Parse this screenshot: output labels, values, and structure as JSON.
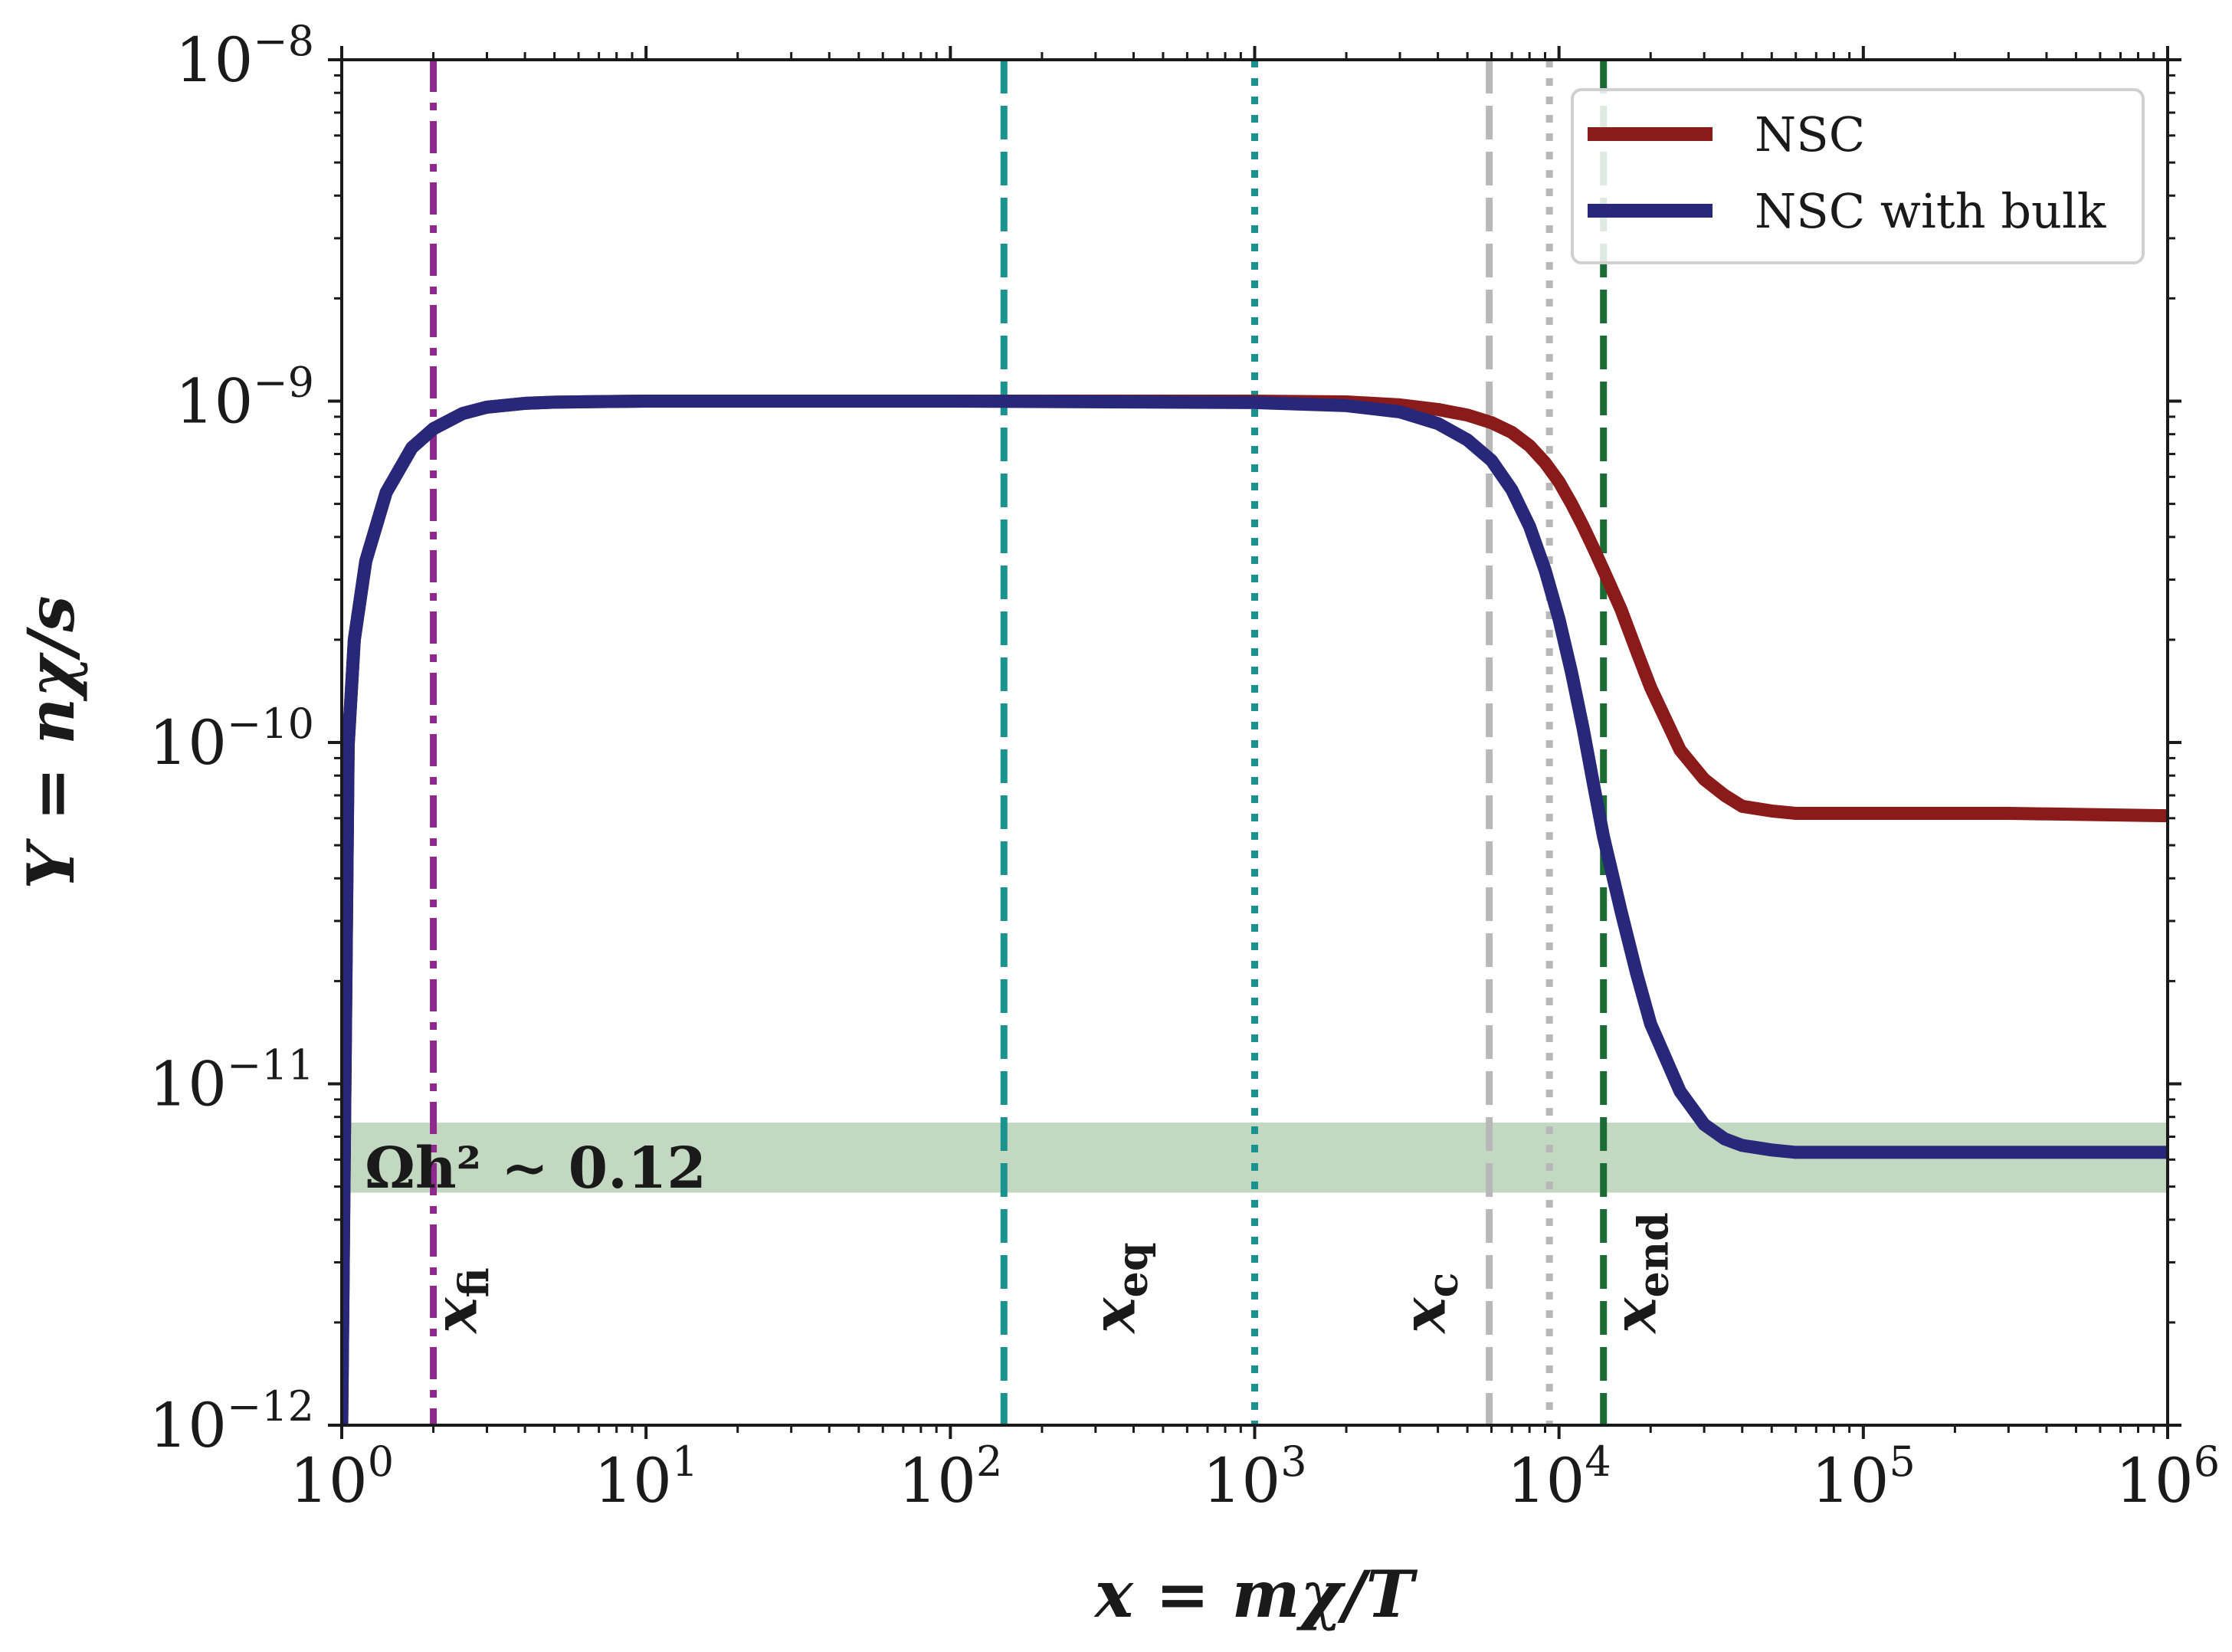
{
  "chart_data": {
    "type": "line",
    "xscale": "log",
    "yscale": "log",
    "xlabel": "x = mχ/T",
    "ylabel": "Y = nχ/s",
    "xlim": [
      1,
      1000000
    ],
    "ylim": [
      1e-12,
      1e-08
    ],
    "x_ticks": [
      {
        "base": "10",
        "exp": "0",
        "value": 1
      },
      {
        "base": "10",
        "exp": "1",
        "value": 10
      },
      {
        "base": "10",
        "exp": "2",
        "value": 100
      },
      {
        "base": "10",
        "exp": "3",
        "value": 1000
      },
      {
        "base": "10",
        "exp": "4",
        "value": 10000
      },
      {
        "base": "10",
        "exp": "5",
        "value": 100000
      },
      {
        "base": "10",
        "exp": "6",
        "value": 1000000
      }
    ],
    "y_ticks": [
      {
        "base": "10",
        "exp": "−12",
        "value": 1e-12
      },
      {
        "base": "10",
        "exp": "−11",
        "value": 1e-11
      },
      {
        "base": "10",
        "exp": "−10",
        "value": 1e-10
      },
      {
        "base": "10",
        "exp": "−9",
        "value": 1e-09
      },
      {
        "base": "10",
        "exp": "−8",
        "value": 1e-08
      }
    ],
    "series": [
      {
        "name": "NSC",
        "color": "#8b1a1a",
        "x": [
          1.0,
          1.05,
          1.1,
          1.2,
          1.4,
          1.7,
          2,
          2.5,
          3,
          4,
          5,
          7,
          10,
          100,
          1000,
          2000,
          3000,
          4000,
          5000,
          6000,
          7000,
          8000,
          9000,
          10000,
          11000,
          12000,
          13000,
          14000,
          16000,
          18000,
          20000,
          25000,
          30000,
          35000,
          40000,
          50000,
          60000,
          100000,
          300000,
          1000000
        ],
        "values": [
          1e-12,
          9.8e-11,
          2e-10,
          3.4e-10,
          5.4e-10,
          7.3e-10,
          8.3e-10,
          9.2e-10,
          9.6e-10,
          9.85e-10,
          9.93e-10,
          9.97e-10,
          1e-09,
          1e-09,
          1e-09,
          9.95e-10,
          9.75e-10,
          9.45e-10,
          9.1e-10,
          8.65e-10,
          8.1e-10,
          7.4e-10,
          6.6e-10,
          5.8e-10,
          5e-10,
          4.3e-10,
          3.7e-10,
          3.2e-10,
          2.45e-10,
          1.85e-10,
          1.45e-10,
          9.5e-11,
          7.8e-11,
          7e-11,
          6.5e-11,
          6.3e-11,
          6.2e-11,
          6.2e-11,
          6.2e-11,
          6.1e-11
        ]
      },
      {
        "name": "NSC with bulk",
        "color": "#28287a",
        "x": [
          1.0,
          1.05,
          1.1,
          1.2,
          1.4,
          1.7,
          2,
          2.5,
          3,
          4,
          5,
          7,
          10,
          100,
          1000,
          2000,
          3000,
          4000,
          5000,
          6000,
          7000,
          8000,
          9000,
          10000,
          11000,
          12000,
          13000,
          14000,
          16000,
          18000,
          20000,
          25000,
          30000,
          35000,
          40000,
          50000,
          60000,
          100000,
          300000,
          1000000
        ],
        "values": [
          1e-12,
          9.8e-11,
          2e-10,
          3.4e-10,
          5.4e-10,
          7.3e-10,
          8.3e-10,
          9.2e-10,
          9.6e-10,
          9.85e-10,
          9.93e-10,
          9.97e-10,
          1e-09,
          1e-09,
          9.9e-10,
          9.7e-10,
          9.3e-10,
          8.6e-10,
          7.7e-10,
          6.7e-10,
          5.5e-10,
          4.3e-10,
          3.2e-10,
          2.3e-10,
          1.6e-10,
          1.1e-10,
          7.5e-11,
          5.3e-11,
          3.2e-11,
          2.1e-11,
          1.5e-11,
          9.5e-12,
          7.6e-12,
          6.9e-12,
          6.6e-12,
          6.4e-12,
          6.3e-12,
          6.3e-12,
          6.3e-12,
          6.3e-12
        ]
      }
    ],
    "vertical_lines": [
      {
        "name": "x_fi",
        "label": "x",
        "sub": "fi",
        "x": 2,
        "style": "dashdot",
        "color": "#8e2a8e",
        "labeled": true
      },
      {
        "name": "x_eq",
        "label": "x",
        "sub": "eq",
        "x": 150,
        "style": "dashed",
        "color": "#1a9390",
        "labeled": true
      },
      {
        "name": "x_eq_dotted",
        "x": 1000,
        "style": "dotted",
        "color": "#1a9390",
        "labeled": false
      },
      {
        "name": "x_c",
        "label": "x",
        "sub": "c",
        "x": 5900,
        "style": "dashed",
        "color": "#b8b8b8",
        "labeled": true
      },
      {
        "name": "x_c_dotted",
        "x": 9300,
        "style": "dotted",
        "color": "#b8b8b8",
        "labeled": false
      },
      {
        "name": "x_end",
        "label": "x",
        "sub": "end",
        "x": 14000,
        "style": "dashed",
        "color": "#1b6b35",
        "labeled": true
      }
    ],
    "band": {
      "label": "Ωh² ∼ 0.12",
      "ymin": 4.8e-12,
      "ymax": 7.7e-12,
      "color": "#a9c8a6"
    },
    "legend": {
      "position": "top-right",
      "entries": [
        "NSC",
        "NSC with bulk"
      ]
    }
  }
}
